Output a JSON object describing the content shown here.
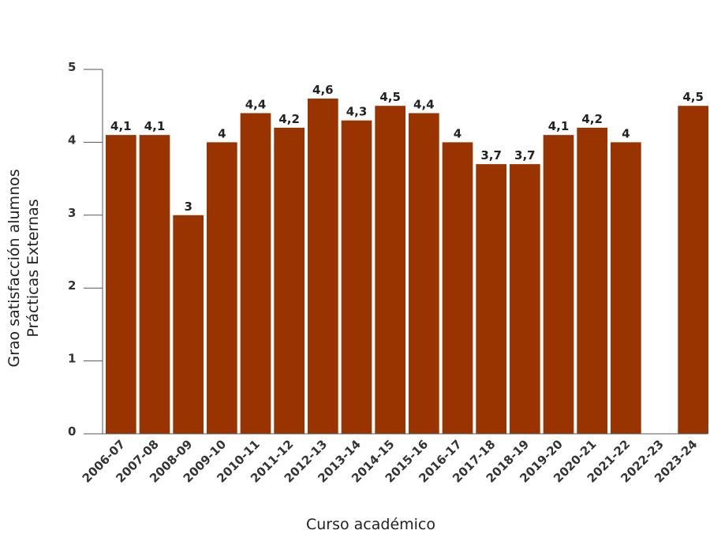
{
  "chart_data": {
    "type": "bar",
    "categories": [
      "2006-07",
      "2007-08",
      "2008-09",
      "2009-10",
      "2010-11",
      "2011-12",
      "2012-13",
      "2013-14",
      "2014-15",
      "2015-16",
      "2016-17",
      "2017-18",
      "2018-19",
      "2019-20",
      "2020-21",
      "2021-22",
      "2022-23",
      "2023-24"
    ],
    "values": [
      4.1,
      4.1,
      3,
      4,
      4.4,
      4.2,
      4.6,
      4.3,
      4.5,
      4.4,
      4,
      3.7,
      3.7,
      4.1,
      4.2,
      4,
      null,
      4.5
    ],
    "data_labels": [
      "4,1",
      "4,1",
      "3",
      "4",
      "4,4",
      "4,2",
      "4,6",
      "4,3",
      "4,5",
      "4,4",
      "4",
      "3,7",
      "3,7",
      "4,1",
      "4,2",
      "4",
      "",
      "4,5"
    ],
    "y_ticks": [
      "0",
      "1",
      "2",
      "3",
      "4",
      "5"
    ],
    "title": "",
    "xlabel": "Curso académico",
    "ylabel_lines": [
      "Grao satisfacción alumnos",
      "Prácticas Externas"
    ],
    "ylim": [
      0,
      5
    ],
    "grid": false,
    "bar_color": "#993300"
  }
}
